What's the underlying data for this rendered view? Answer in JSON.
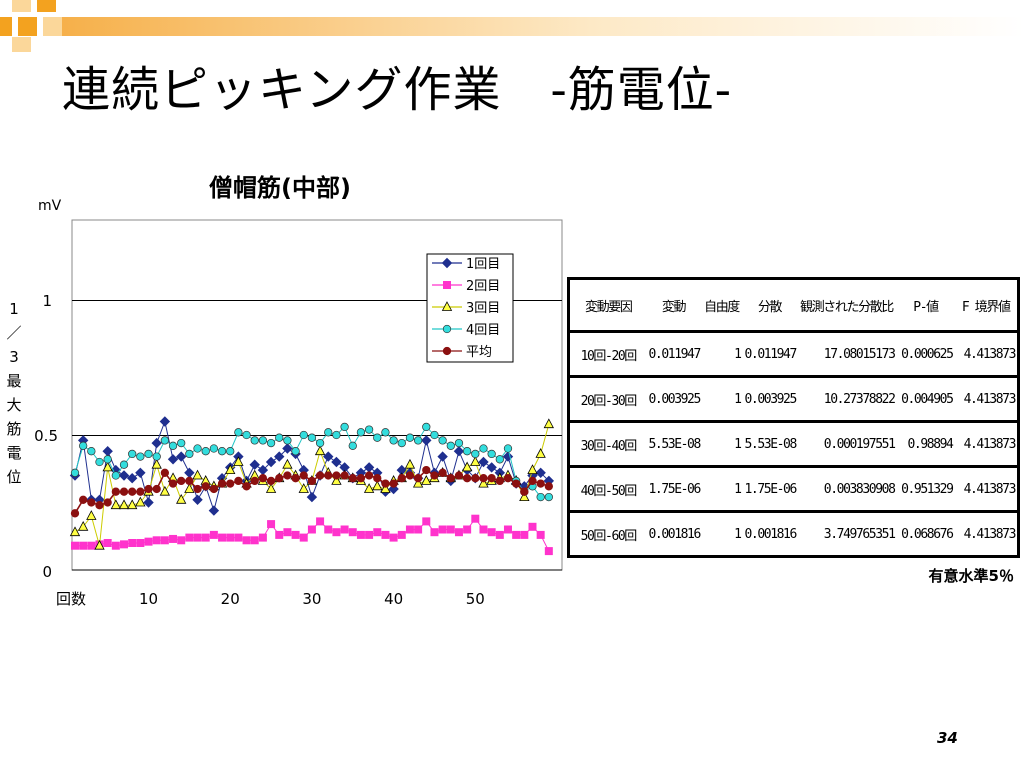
{
  "slide": {
    "title": "連続ピッキング作業　-筋電位-",
    "page_number": "34",
    "significance_note": "有意水準5％"
  },
  "colors": {
    "deco_orange": "#f3a21f",
    "deco_light": "#fbd79a"
  },
  "chart_data": {
    "type": "line",
    "title": "僧帽筋(中部)",
    "ylabel": "1／3最大筋電位",
    "yunit": "mV",
    "xlabel": "回数",
    "ylim": [
      0,
      1.3
    ],
    "xlim": [
      1,
      60
    ],
    "yticks": [
      "1",
      "0.5",
      "0"
    ],
    "xticks": [
      "10",
      "20",
      "30",
      "40",
      "50"
    ],
    "grid": "horizontal lines at 0.5 and 1",
    "legend_position": "top-right",
    "series": [
      {
        "name": "1回目",
        "color": "#1f2f8f",
        "marker": "diamond",
        "values": [
          0.35,
          0.48,
          0.26,
          0.26,
          0.44,
          0.37,
          0.35,
          0.34,
          0.36,
          0.25,
          0.47,
          0.55,
          0.41,
          0.42,
          0.36,
          0.26,
          0.31,
          0.22,
          0.34,
          0.38,
          0.42,
          0.33,
          0.39,
          0.37,
          0.4,
          0.42,
          0.45,
          0.43,
          0.37,
          0.27,
          0.35,
          0.42,
          0.4,
          0.38,
          0.34,
          0.36,
          0.38,
          0.36,
          0.29,
          0.3,
          0.37,
          0.36,
          0.34,
          0.48,
          0.36,
          0.42,
          0.33,
          0.44,
          0.37,
          0.34,
          0.4,
          0.38,
          0.36,
          0.42,
          0.32,
          0.31,
          0.35,
          0.36,
          0.33
        ]
      },
      {
        "name": "2回目",
        "color": "#ff33cc",
        "marker": "square",
        "values": [
          0.09,
          0.09,
          0.09,
          0.095,
          0.1,
          0.09,
          0.095,
          0.1,
          0.1,
          0.105,
          0.11,
          0.11,
          0.115,
          0.11,
          0.12,
          0.12,
          0.12,
          0.13,
          0.12,
          0.12,
          0.12,
          0.11,
          0.11,
          0.12,
          0.17,
          0.13,
          0.14,
          0.13,
          0.12,
          0.15,
          0.18,
          0.15,
          0.14,
          0.15,
          0.14,
          0.13,
          0.13,
          0.14,
          0.13,
          0.12,
          0.13,
          0.15,
          0.15,
          0.18,
          0.14,
          0.15,
          0.15,
          0.14,
          0.15,
          0.19,
          0.15,
          0.14,
          0.13,
          0.15,
          0.13,
          0.13,
          0.16,
          0.13,
          0.07
        ]
      },
      {
        "name": "3回目",
        "color": "#ffff44",
        "marker": "triangle",
        "values": [
          0.14,
          0.16,
          0.2,
          0.09,
          0.38,
          0.24,
          0.24,
          0.24,
          0.25,
          0.29,
          0.39,
          0.29,
          0.34,
          0.26,
          0.3,
          0.35,
          0.33,
          0.31,
          0.32,
          0.37,
          0.4,
          0.32,
          0.35,
          0.33,
          0.3,
          0.34,
          0.39,
          0.35,
          0.3,
          0.33,
          0.44,
          0.36,
          0.33,
          0.35,
          0.34,
          0.33,
          0.3,
          0.31,
          0.3,
          0.33,
          0.34,
          0.39,
          0.32,
          0.33,
          0.34,
          0.36,
          0.34,
          0.35,
          0.38,
          0.4,
          0.32,
          0.33,
          0.34,
          0.35,
          0.33,
          0.27,
          0.37,
          0.43,
          0.54
        ]
      },
      {
        "name": "4回目",
        "color": "#33dddd",
        "marker": "circle",
        "values": [
          0.36,
          0.46,
          0.44,
          0.4,
          0.41,
          0.35,
          0.39,
          0.43,
          0.42,
          0.43,
          0.42,
          0.48,
          0.46,
          0.47,
          0.43,
          0.45,
          0.44,
          0.45,
          0.44,
          0.44,
          0.51,
          0.5,
          0.48,
          0.48,
          0.47,
          0.49,
          0.48,
          0.44,
          0.5,
          0.49,
          0.47,
          0.51,
          0.5,
          0.53,
          0.46,
          0.51,
          0.52,
          0.49,
          0.51,
          0.48,
          0.47,
          0.49,
          0.48,
          0.53,
          0.5,
          0.48,
          0.46,
          0.47,
          0.44,
          0.43,
          0.45,
          0.43,
          0.41,
          0.45,
          0.33,
          0.29,
          0.31,
          0.27,
          0.27
        ]
      },
      {
        "name": "平均",
        "color": "#8b1010",
        "marker": "circle",
        "values": [
          0.21,
          0.26,
          0.25,
          0.24,
          0.25,
          0.29,
          0.29,
          0.29,
          0.29,
          0.3,
          0.3,
          0.36,
          0.32,
          0.33,
          0.33,
          0.3,
          0.31,
          0.3,
          0.32,
          0.32,
          0.33,
          0.31,
          0.33,
          0.34,
          0.33,
          0.34,
          0.35,
          0.34,
          0.35,
          0.33,
          0.35,
          0.35,
          0.35,
          0.35,
          0.34,
          0.34,
          0.35,
          0.34,
          0.32,
          0.32,
          0.34,
          0.35,
          0.34,
          0.37,
          0.35,
          0.36,
          0.34,
          0.35,
          0.34,
          0.34,
          0.34,
          0.34,
          0.33,
          0.34,
          0.32,
          0.29,
          0.33,
          0.32,
          0.31
        ]
      }
    ]
  },
  "table": {
    "headers": [
      "変動要因",
      "変動",
      "自由度",
      "分散",
      "観測された分散比",
      "P-値",
      "F 境界値"
    ],
    "rows": [
      [
        "10回-20回",
        "0.011947",
        "1",
        "0.011947",
        "17.08015173",
        "0.000625",
        "4.413873"
      ],
      [
        "20回-30回",
        "0.003925",
        "1",
        "0.003925",
        "10.27378822",
        "0.004905",
        "4.413873"
      ],
      [
        "30回-40回",
        "5.53E-08",
        "1",
        "5.53E-08",
        "0.000197551",
        "0.98894",
        "4.413873"
      ],
      [
        "40回-50回",
        "1.75E-06",
        "1",
        "1.75E-06",
        "0.003830908",
        "0.951329",
        "4.413873"
      ],
      [
        "50回-60回",
        "0.001816",
        "1",
        "0.001816",
        "3.749765351",
        "0.068676",
        "4.413873"
      ]
    ]
  }
}
